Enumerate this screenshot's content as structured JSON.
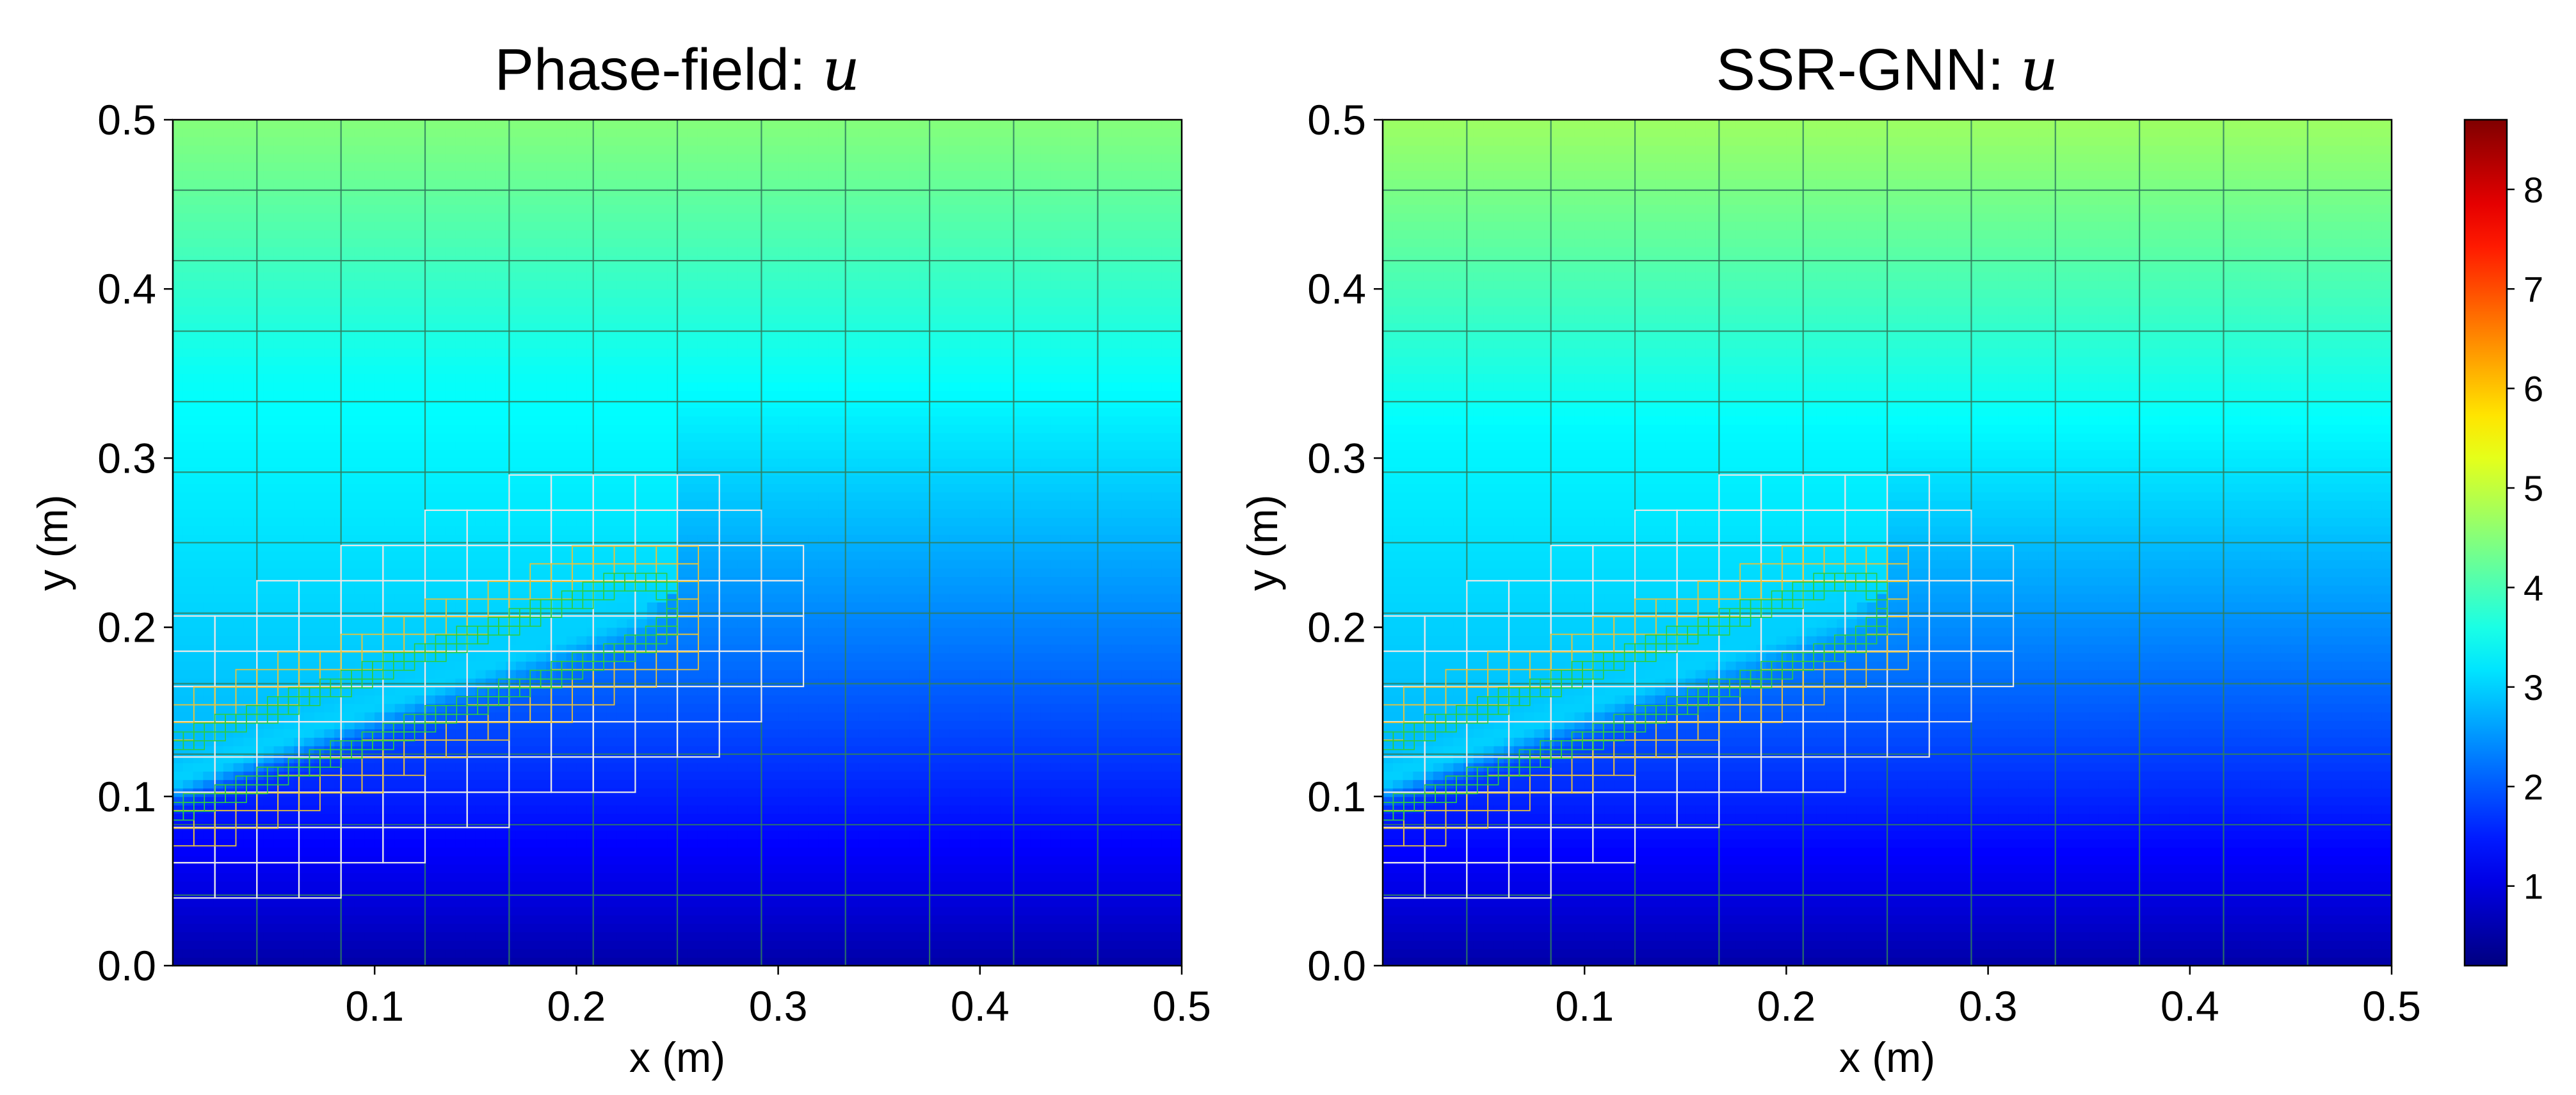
{
  "chart_data": [
    {
      "type": "heatmap",
      "title": "Phase-field: ",
      "title_symbol": "u",
      "xlabel": "x (m)",
      "ylabel": "y (m)",
      "xlim": [
        0,
        0.5
      ],
      "ylim": [
        0,
        0.5
      ],
      "xticks": [
        "0.1",
        "0.2",
        "0.3",
        "0.4",
        "0.5"
      ],
      "yticks": [
        "0.0",
        "0.1",
        "0.2",
        "0.3",
        "0.4",
        "0.5"
      ],
      "colormap": "jet",
      "field_u": {
        "bottom_y0": 0.5,
        "top_y05": 4.5,
        "crack_start": [
          0.0,
          0.11
        ],
        "crack_tip": [
          0.23,
          0.21
        ],
        "value_in_crack": 3.0
      },
      "mesh": {
        "coarse_spacing": 0.04167,
        "refinement_note": "adaptive refinement along crack path (white, yellow, green cells)"
      }
    },
    {
      "type": "heatmap",
      "title": "SSR-GNN: ",
      "title_symbol": "u",
      "xlabel": "x (m)",
      "ylabel": "y (m)",
      "xlim": [
        0,
        0.5
      ],
      "ylim": [
        0,
        0.5
      ],
      "xticks": [
        "0.1",
        "0.2",
        "0.3",
        "0.4",
        "0.5"
      ],
      "yticks": [
        "0.0",
        "0.1",
        "0.2",
        "0.3",
        "0.4",
        "0.5"
      ],
      "colormap": "jet",
      "field_u": {
        "bottom_y0": 0.5,
        "top_y05": 4.7,
        "crack_start": [
          0.0,
          0.11
        ],
        "crack_tip": [
          0.23,
          0.21
        ],
        "value_in_crack": 3.0
      },
      "mesh": {
        "coarse_spacing": 0.04167,
        "refinement_note": "adaptive refinement along crack path (white, yellow, green cells)"
      }
    }
  ],
  "colorbar": {
    "range": [
      0.2,
      8.7
    ],
    "ticks": [
      "1",
      "2",
      "3",
      "4",
      "5",
      "6",
      "7",
      "8"
    ],
    "tick_values": [
      1,
      2,
      3,
      4,
      5,
      6,
      7,
      8
    ],
    "colormap": "jet"
  },
  "colors": {
    "coarse_grid": "#2f7f5f",
    "refine_white": "#e8e8e8",
    "refine_yellow": "#e8c23a",
    "refine_green": "#2ecc40"
  }
}
